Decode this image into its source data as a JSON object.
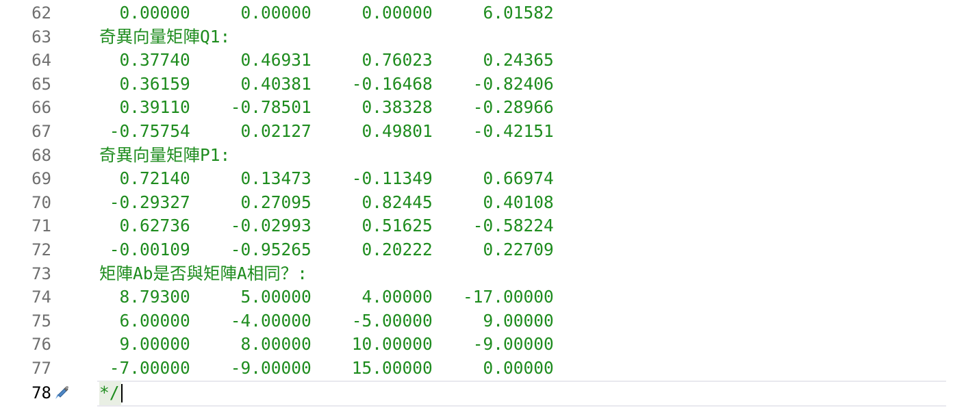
{
  "editor": {
    "lines": [
      {
        "number": "62",
        "text": "  0.00000     0.00000     0.00000     6.01582"
      },
      {
        "number": "63",
        "text": "奇異向量矩陣Q1:"
      },
      {
        "number": "64",
        "text": "  0.37740     0.46931     0.76023     0.24365"
      },
      {
        "number": "65",
        "text": "  0.36159     0.40381    -0.16468    -0.82406"
      },
      {
        "number": "66",
        "text": "  0.39110    -0.78501     0.38328    -0.28966"
      },
      {
        "number": "67",
        "text": " -0.75754     0.02127     0.49801    -0.42151"
      },
      {
        "number": "68",
        "text": "奇異向量矩陣P1:"
      },
      {
        "number": "69",
        "text": "  0.72140     0.13473    -0.11349     0.66974"
      },
      {
        "number": "70",
        "text": " -0.29327     0.27095     0.82445     0.40108"
      },
      {
        "number": "71",
        "text": "  0.62736    -0.02993     0.51625    -0.58224"
      },
      {
        "number": "72",
        "text": " -0.00109    -0.95265     0.20222     0.22709"
      },
      {
        "number": "73",
        "text": "矩陣Ab是否與矩陣A相同？:"
      },
      {
        "number": "74",
        "text": "  8.79300     5.00000     4.00000   -17.00000"
      },
      {
        "number": "75",
        "text": "  6.00000    -4.00000    -5.00000     9.00000"
      },
      {
        "number": "76",
        "text": "  9.00000     8.00000    10.00000    -9.00000"
      },
      {
        "number": "77",
        "text": " -7.00000    -9.00000    15.00000     0.00000"
      }
    ],
    "current_line": {
      "number": "78",
      "text": "*/"
    },
    "colors": {
      "code": "#1e8c1e",
      "line_number": "#6f6f6f",
      "current_line_number": "#000000",
      "current_line_border": "#e8e8ee"
    },
    "icons": {
      "gutter_marker": "pen-icon"
    }
  }
}
